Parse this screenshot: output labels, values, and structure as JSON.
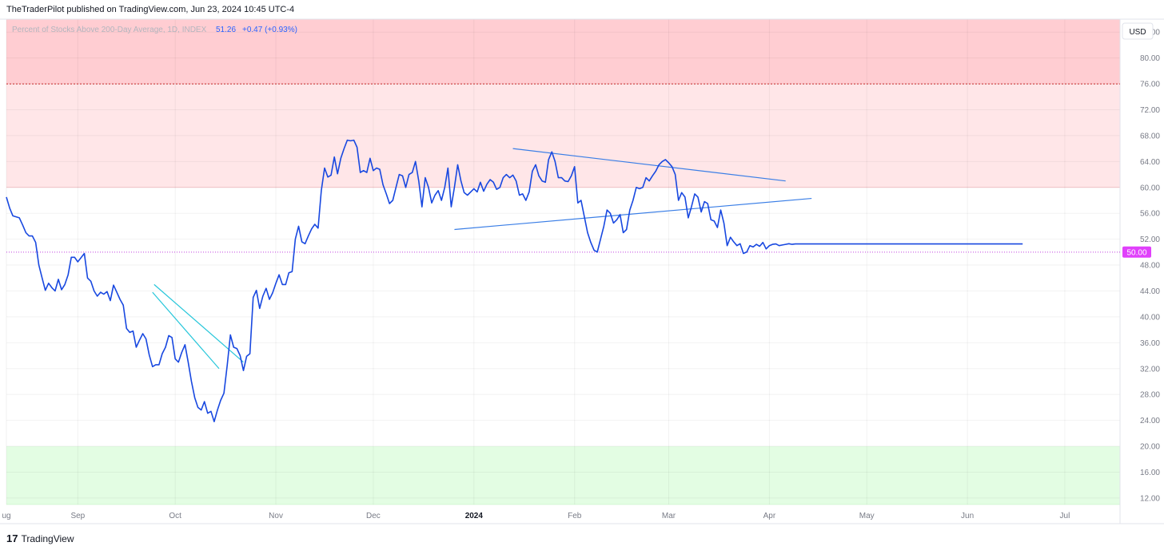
{
  "header": {
    "text": "TheTraderPilot published on TradingView.com, Jun 23, 2024 10:45 UTC-4"
  },
  "footer": {
    "brand": "TradingView",
    "logo_glyph": "17"
  },
  "currency_button": "USD",
  "legend": {
    "title": "Percent of Stocks Above 200-Day Average, 1D, INDEX",
    "last": "51.26",
    "change": "+0.47 (+0.93%)"
  },
  "price_label": "50.00",
  "colors": {
    "line": "#1848e0",
    "trendline": "#3a7ee6",
    "wedge": "#26c6da",
    "overbought_dark": "#ffcdd2",
    "overbought_light": "#ffe6e8",
    "oversold": "#e3fde3",
    "dotted_red": "#c62828",
    "dotted_magenta": "#c040e0",
    "price_label_bg": "#e040fb"
  },
  "chart_data": {
    "type": "line",
    "title": "Percent of Stocks Above 200-Day Average, 1D, INDEX",
    "ylim": [
      11,
      86
    ],
    "y_ticks": [
      "12.00",
      "16.00",
      "20.00",
      "24.00",
      "28.00",
      "32.00",
      "36.00",
      "40.00",
      "44.00",
      "48.00",
      "52.00",
      "56.00",
      "60.00",
      "64.00",
      "68.00",
      "72.00",
      "76.00",
      "80.00",
      "84.00"
    ],
    "x_ticks": [
      {
        "label": "ug",
        "x": 0.0
      },
      {
        "label": "Sep",
        "x": 22.0
      },
      {
        "label": "Oct",
        "x": 52.0
      },
      {
        "label": "Nov",
        "x": 83.0
      },
      {
        "label": "Dec",
        "x": 113.0
      },
      {
        "label": "2024",
        "x": 144.0,
        "bold": true
      },
      {
        "label": "Feb",
        "x": 175.0
      },
      {
        "label": "Mar",
        "x": 204.0
      },
      {
        "label": "Apr",
        "x": 235.0
      },
      {
        "label": "May",
        "x": 265.0
      },
      {
        "label": "Jun",
        "x": 296.0
      },
      {
        "label": "Jul",
        "x": 326.0
      }
    ],
    "xlim": [
      0,
      343
    ],
    "zones": [
      {
        "from": 76,
        "to": 90,
        "name": "overbought-upper"
      },
      {
        "from": 60,
        "to": 76,
        "name": "overbought-lower"
      },
      {
        "from": 11,
        "to": 20,
        "name": "oversold"
      }
    ],
    "hlines": [
      {
        "y": 76,
        "style": "dotted-red"
      },
      {
        "y": 50,
        "style": "dotted-magenta"
      }
    ],
    "series": [
      {
        "x": [
          0,
          1,
          2,
          4,
          5,
          6,
          7,
          8,
          9,
          10,
          11,
          12,
          13,
          14,
          15,
          16,
          17,
          18,
          19,
          20,
          21,
          22,
          24,
          25,
          26,
          27,
          28,
          29,
          30,
          31,
          32,
          33,
          34,
          35,
          36,
          37,
          38,
          39,
          40,
          41,
          42,
          43,
          44,
          45,
          46,
          47,
          48,
          49,
          50,
          51,
          52,
          53,
          54,
          55,
          56,
          57,
          58,
          59,
          60,
          61,
          62,
          63,
          64,
          65,
          66,
          67,
          68,
          69,
          70,
          71,
          72,
          73,
          74,
          75,
          76,
          77,
          78,
          79,
          80,
          81,
          82,
          83,
          84,
          85,
          86,
          87,
          88,
          89,
          90,
          91,
          92,
          93,
          94,
          95,
          96,
          97,
          98,
          99,
          100,
          101,
          102,
          103,
          104,
          105,
          106,
          107,
          108,
          109,
          110,
          111,
          112,
          113,
          114,
          115,
          116,
          117,
          118,
          119,
          120,
          121,
          122,
          123,
          124,
          125,
          126,
          127,
          128,
          129,
          130,
          131,
          132,
          133,
          134,
          135,
          136,
          137,
          138,
          139,
          140,
          141,
          142,
          143,
          144,
          145,
          146,
          147,
          148,
          149,
          150,
          151,
          152,
          153,
          154,
          155,
          156,
          157,
          158,
          159,
          160,
          161,
          162,
          163,
          164,
          165,
          166,
          167,
          168,
          169,
          170,
          171,
          172,
          173,
          174,
          175,
          176,
          177,
          178,
          179,
          180,
          181,
          182,
          183,
          184,
          185,
          186,
          187,
          188,
          189,
          190,
          191,
          192,
          193,
          194,
          195,
          196,
          197,
          198,
          199,
          200,
          201,
          202,
          203,
          204,
          205,
          206,
          207,
          208,
          209,
          210,
          211,
          212,
          213,
          214,
          215,
          216,
          217,
          218,
          219,
          220,
          221,
          222,
          223,
          224,
          225,
          226,
          227,
          228,
          229,
          230,
          231,
          232,
          233,
          234,
          235,
          236,
          237,
          238,
          239,
          240,
          241,
          242,
          243,
          244,
          245,
          246,
          247,
          248,
          249,
          250,
          251,
          252,
          253,
          254,
          255,
          256,
          257,
          258,
          259,
          260,
          261,
          262,
          263,
          264,
          265,
          266,
          267,
          268,
          269,
          270,
          271,
          272,
          273,
          274,
          275,
          276,
          277,
          278,
          279,
          280,
          281,
          282,
          283,
          284,
          285,
          286,
          287,
          288,
          289,
          290,
          291,
          292,
          293,
          294,
          295,
          296,
          297,
          298,
          299,
          300,
          301,
          302,
          303,
          304,
          305,
          306,
          307,
          308,
          309,
          310,
          311,
          312,
          313,
          314,
          315,
          316,
          317,
          318,
          319,
          320,
          321,
          322
        ],
        "values": [
          58.5,
          56.8,
          55.6,
          55.3,
          54.2,
          53.0,
          52.5,
          52.5,
          51.5,
          48.0,
          46.0,
          44.1,
          45.2,
          44.5,
          44.0,
          45.8,
          44.2,
          45.0,
          46.5,
          49.2,
          49.2,
          48.5,
          49.8,
          46.0,
          45.5,
          44.0,
          43.2,
          43.8,
          43.5,
          43.9,
          42.5,
          44.9,
          43.8,
          42.7,
          41.8,
          38.2,
          37.6,
          37.8,
          35.3,
          36.4,
          37.4,
          36.6,
          34.1,
          32.3,
          32.6,
          32.6,
          34.3,
          35.3,
          37.1,
          36.8,
          33.5,
          33.0,
          34.5,
          35.7,
          33.0,
          30.0,
          27.5,
          26.0,
          25.6,
          26.9,
          25.1,
          25.4,
          23.8,
          25.6,
          27.1,
          28.2,
          32.5,
          37.2,
          35.3,
          35.1,
          34.0,
          31.7,
          33.9,
          34.3,
          43.0,
          44.1,
          41.3,
          43.2,
          44.4,
          42.7,
          43.7,
          45.2,
          46.5,
          45.0,
          45.0,
          46.8,
          47.0,
          52.0,
          54.0,
          51.6,
          51.3,
          52.5,
          53.6,
          54.3,
          53.7,
          59.5,
          63.0,
          61.6,
          61.9,
          64.7,
          62.1,
          64.5,
          66.0,
          67.3,
          67.2,
          67.3,
          66.2,
          62.3,
          62.6,
          62.3,
          64.5,
          62.6,
          63.0,
          62.8,
          60.4,
          59.0,
          57.5,
          58.0,
          60.0,
          62.0,
          61.8,
          60.0,
          62.0,
          62.3,
          64.0,
          61.0,
          57.0,
          61.5,
          60.0,
          57.6,
          58.8,
          59.5,
          58.0,
          60.0,
          63.0,
          57.0,
          60.0,
          63.5,
          61.0,
          59.2,
          58.8,
          59.3,
          59.8,
          59.3,
          60.8,
          59.4,
          60.5,
          61.2,
          60.8,
          59.7,
          60.0,
          61.5,
          62.0,
          61.5,
          61.9,
          61.0,
          58.8,
          59.0,
          58.0,
          59.3,
          62.5,
          63.5,
          61.8,
          61.0,
          60.8,
          64.3,
          65.5,
          64.0,
          61.5,
          61.5,
          61.0,
          60.9,
          61.8,
          63.2,
          57.6,
          58.0,
          55.5,
          53.0,
          51.5,
          50.3,
          50.0,
          52.0,
          54.0,
          56.5,
          56.0,
          54.5,
          55.0,
          55.8,
          53.0,
          53.5,
          56.5,
          58.0,
          60.0,
          59.8,
          60.0,
          61.5,
          61.0,
          61.8,
          62.5,
          63.5,
          64.0,
          64.3,
          63.8,
          63.2,
          62.0,
          58.0,
          59.2,
          58.5,
          55.3,
          57.0,
          59.0,
          58.5,
          56.2,
          57.8,
          57.5,
          55.0,
          54.8,
          53.8,
          56.5,
          54.5,
          51.0,
          52.3,
          51.6,
          51.0,
          51.3,
          49.8,
          50.0,
          51.0,
          50.8,
          51.2,
          50.9,
          51.5,
          50.5,
          51.0,
          51.2,
          51.26,
          51.0,
          51.1,
          51.2,
          51.3,
          51.2,
          51.26,
          51.26,
          51.26,
          51.26,
          51.26,
          51.26,
          51.26,
          51.26,
          51.26,
          51.26,
          51.26,
          51.26,
          51.26,
          51.26,
          51.26,
          51.26,
          51.26,
          51.26,
          51.26,
          51.26,
          51.26,
          51.26,
          51.26,
          51.26,
          51.26,
          51.26,
          51.26,
          51.26,
          51.26,
          51.26,
          51.26,
          51.26,
          51.26,
          51.26,
          51.26,
          51.26,
          51.26,
          51.26,
          51.26,
          51.26,
          51.26,
          51.26,
          51.26,
          51.26,
          51.26,
          51.26,
          51.26,
          51.26,
          51.26,
          51.26,
          51.26,
          51.26,
          51.26,
          51.26,
          51.26,
          51.26,
          51.26,
          51.26,
          51.26,
          51.26,
          51.26,
          51.26,
          51.26,
          51.26,
          51.26,
          51.26,
          51.26,
          51.26,
          51.26,
          51.26,
          51.26,
          51.26,
          51.26,
          51.26,
          51.26,
          51.26,
          51.26,
          51.26,
          51.26,
          51.26
        ]
      }
    ],
    "trendlines": [
      {
        "name": "wedge-upper",
        "x": [
          45.5,
          73.0
        ],
        "y": [
          45.0,
          33.0
        ]
      },
      {
        "name": "wedge-lower",
        "x": [
          45.0,
          65.5
        ],
        "y": [
          43.8,
          32.0
        ]
      },
      {
        "name": "triangle-upper",
        "x": [
          156.0,
          240.0
        ],
        "y": [
          66.0,
          61.0
        ]
      },
      {
        "name": "triangle-lower",
        "x": [
          138.0,
          248.0
        ],
        "y": [
          53.5,
          58.3
        ]
      }
    ]
  }
}
